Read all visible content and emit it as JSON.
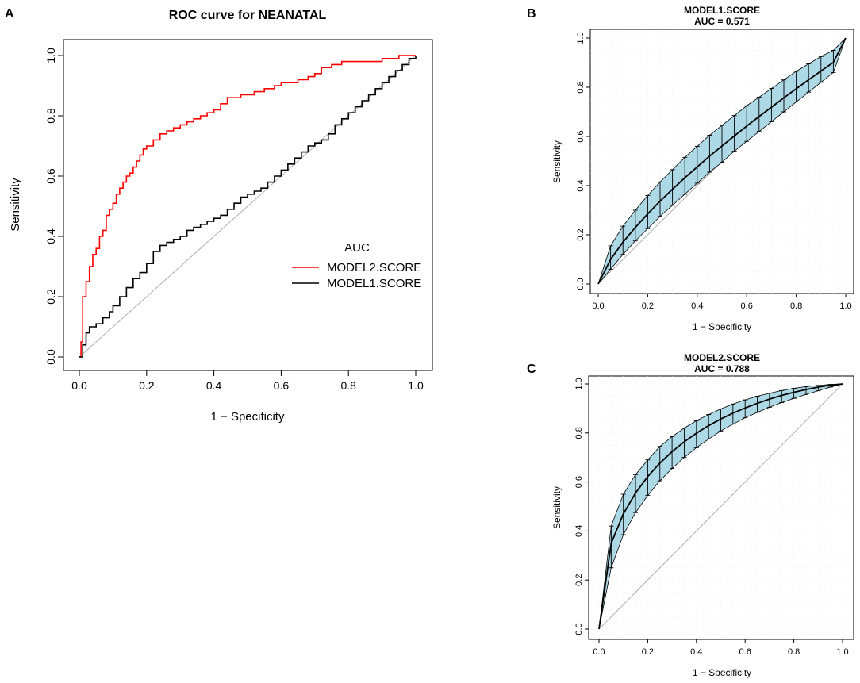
{
  "panel_labels": {
    "a": "A",
    "b": "B",
    "c": "C"
  },
  "chart_data": [
    {
      "id": "A",
      "type": "line",
      "title": "ROC curve for NEANATAL",
      "xlabel": "1 − Specificity",
      "ylabel": "Sensitivity",
      "xlim": [
        0,
        1
      ],
      "ylim": [
        0,
        1
      ],
      "xticks": [
        "0.0",
        "0.2",
        "0.4",
        "0.6",
        "0.8",
        "1.0"
      ],
      "yticks": [
        "0.0",
        "0.2",
        "0.4",
        "0.6",
        "0.8",
        "1.0"
      ],
      "legend_title": "AUC",
      "legend_position": "right",
      "series": [
        {
          "name": "MODEL2.SCORE",
          "color": "#ff0000",
          "x": [
            0,
            0.005,
            0.01,
            0.01,
            0.02,
            0.03,
            0.04,
            0.05,
            0.06,
            0.07,
            0.08,
            0.09,
            0.1,
            0.11,
            0.12,
            0.13,
            0.14,
            0.15,
            0.16,
            0.17,
            0.18,
            0.19,
            0.2,
            0.22,
            0.24,
            0.26,
            0.28,
            0.3,
            0.32,
            0.34,
            0.36,
            0.38,
            0.4,
            0.42,
            0.44,
            0.46,
            0.48,
            0.5,
            0.52,
            0.55,
            0.58,
            0.6,
            0.62,
            0.65,
            0.68,
            0.7,
            0.72,
            0.75,
            0.78,
            0.8,
            0.85,
            0.9,
            0.93,
            0.95,
            0.97,
            1.0
          ],
          "y": [
            0,
            0.05,
            0.15,
            0.2,
            0.25,
            0.3,
            0.34,
            0.36,
            0.4,
            0.42,
            0.47,
            0.49,
            0.51,
            0.54,
            0.56,
            0.58,
            0.6,
            0.61,
            0.63,
            0.65,
            0.67,
            0.69,
            0.7,
            0.72,
            0.74,
            0.75,
            0.76,
            0.77,
            0.78,
            0.79,
            0.8,
            0.81,
            0.82,
            0.84,
            0.86,
            0.86,
            0.87,
            0.87,
            0.88,
            0.89,
            0.9,
            0.91,
            0.91,
            0.92,
            0.93,
            0.94,
            0.96,
            0.97,
            0.98,
            0.98,
            0.98,
            0.99,
            0.99,
            1.0,
            1.0,
            1.0
          ]
        },
        {
          "name": "MODEL1.SCORE",
          "color": "#000000",
          "x": [
            0,
            0.01,
            0.02,
            0.03,
            0.05,
            0.07,
            0.09,
            0.1,
            0.12,
            0.14,
            0.16,
            0.18,
            0.2,
            0.22,
            0.24,
            0.26,
            0.28,
            0.3,
            0.32,
            0.34,
            0.36,
            0.38,
            0.4,
            0.42,
            0.44,
            0.46,
            0.48,
            0.5,
            0.52,
            0.54,
            0.56,
            0.58,
            0.6,
            0.62,
            0.64,
            0.66,
            0.68,
            0.7,
            0.72,
            0.74,
            0.76,
            0.78,
            0.8,
            0.82,
            0.84,
            0.86,
            0.88,
            0.9,
            0.92,
            0.94,
            0.96,
            0.98,
            1.0
          ],
          "y": [
            0,
            0.04,
            0.08,
            0.1,
            0.11,
            0.13,
            0.15,
            0.17,
            0.2,
            0.23,
            0.26,
            0.28,
            0.31,
            0.35,
            0.37,
            0.38,
            0.39,
            0.4,
            0.42,
            0.43,
            0.44,
            0.45,
            0.46,
            0.47,
            0.49,
            0.51,
            0.53,
            0.54,
            0.55,
            0.56,
            0.58,
            0.6,
            0.62,
            0.64,
            0.66,
            0.68,
            0.7,
            0.71,
            0.72,
            0.74,
            0.77,
            0.79,
            0.81,
            0.83,
            0.85,
            0.87,
            0.89,
            0.91,
            0.93,
            0.95,
            0.97,
            0.99,
            1.0
          ]
        }
      ]
    },
    {
      "id": "B",
      "type": "line",
      "title": "MODEL1.SCORE",
      "subtitle": "AUC =  0.571",
      "xlabel": "1 − Specificity",
      "ylabel": "Sensitivity",
      "xlim": [
        0,
        1
      ],
      "ylim": [
        0,
        1
      ],
      "xticks": [
        "0.0",
        "0.2",
        "0.4",
        "0.6",
        "0.8",
        "1.0"
      ],
      "yticks": [
        "0.0",
        "0.2",
        "0.4",
        "0.6",
        "0.8",
        "1.0"
      ],
      "band_color": "#add8e6",
      "curve_color": "#000000",
      "x": [
        0,
        0.05,
        0.1,
        0.15,
        0.2,
        0.25,
        0.3,
        0.35,
        0.4,
        0.45,
        0.5,
        0.55,
        0.6,
        0.65,
        0.7,
        0.75,
        0.8,
        0.85,
        0.9,
        0.95,
        1.0
      ],
      "y": [
        0,
        0.1,
        0.17,
        0.23,
        0.285,
        0.337,
        0.385,
        0.432,
        0.476,
        0.52,
        0.561,
        0.602,
        0.642,
        0.681,
        0.719,
        0.757,
        0.794,
        0.83,
        0.866,
        0.901,
        1.0
      ],
      "upper": [
        0,
        0.155,
        0.235,
        0.3,
        0.36,
        0.415,
        0.465,
        0.515,
        0.56,
        0.605,
        0.645,
        0.685,
        0.725,
        0.76,
        0.795,
        0.83,
        0.865,
        0.895,
        0.925,
        0.95,
        1.0
      ],
      "lower": [
        0,
        0.06,
        0.12,
        0.175,
        0.225,
        0.275,
        0.32,
        0.365,
        0.41,
        0.455,
        0.495,
        0.54,
        0.58,
        0.62,
        0.66,
        0.7,
        0.74,
        0.78,
        0.82,
        0.86,
        1.0
      ]
    },
    {
      "id": "C",
      "type": "line",
      "title": "MODEL2.SCORE",
      "subtitle": "AUC =  0.788",
      "xlabel": "1 − Specificity",
      "ylabel": "Sensitivity",
      "xlim": [
        0,
        1
      ],
      "ylim": [
        0,
        1
      ],
      "xticks": [
        "0.0",
        "0.2",
        "0.4",
        "0.6",
        "0.8",
        "1.0"
      ],
      "yticks": [
        "0.0",
        "0.2",
        "0.4",
        "0.6",
        "0.8",
        "1.0"
      ],
      "band_color": "#add8e6",
      "curve_color": "#000000",
      "x": [
        0,
        0.05,
        0.1,
        0.15,
        0.2,
        0.25,
        0.3,
        0.35,
        0.4,
        0.45,
        0.5,
        0.55,
        0.6,
        0.65,
        0.7,
        0.75,
        0.8,
        0.85,
        0.9,
        0.95,
        1.0
      ],
      "y": [
        0,
        0.35,
        0.47,
        0.555,
        0.622,
        0.677,
        0.724,
        0.764,
        0.799,
        0.83,
        0.857,
        0.881,
        0.902,
        0.921,
        0.938,
        0.953,
        0.966,
        0.977,
        0.987,
        0.995,
        1.0
      ],
      "upper": [
        0,
        0.42,
        0.55,
        0.63,
        0.69,
        0.745,
        0.785,
        0.82,
        0.85,
        0.875,
        0.898,
        0.918,
        0.935,
        0.95,
        0.962,
        0.973,
        0.982,
        0.989,
        0.994,
        0.998,
        1.0
      ],
      "lower": [
        0,
        0.25,
        0.385,
        0.475,
        0.545,
        0.605,
        0.655,
        0.7,
        0.74,
        0.775,
        0.808,
        0.836,
        0.862,
        0.884,
        0.905,
        0.924,
        0.941,
        0.957,
        0.972,
        0.987,
        1.0
      ]
    }
  ]
}
